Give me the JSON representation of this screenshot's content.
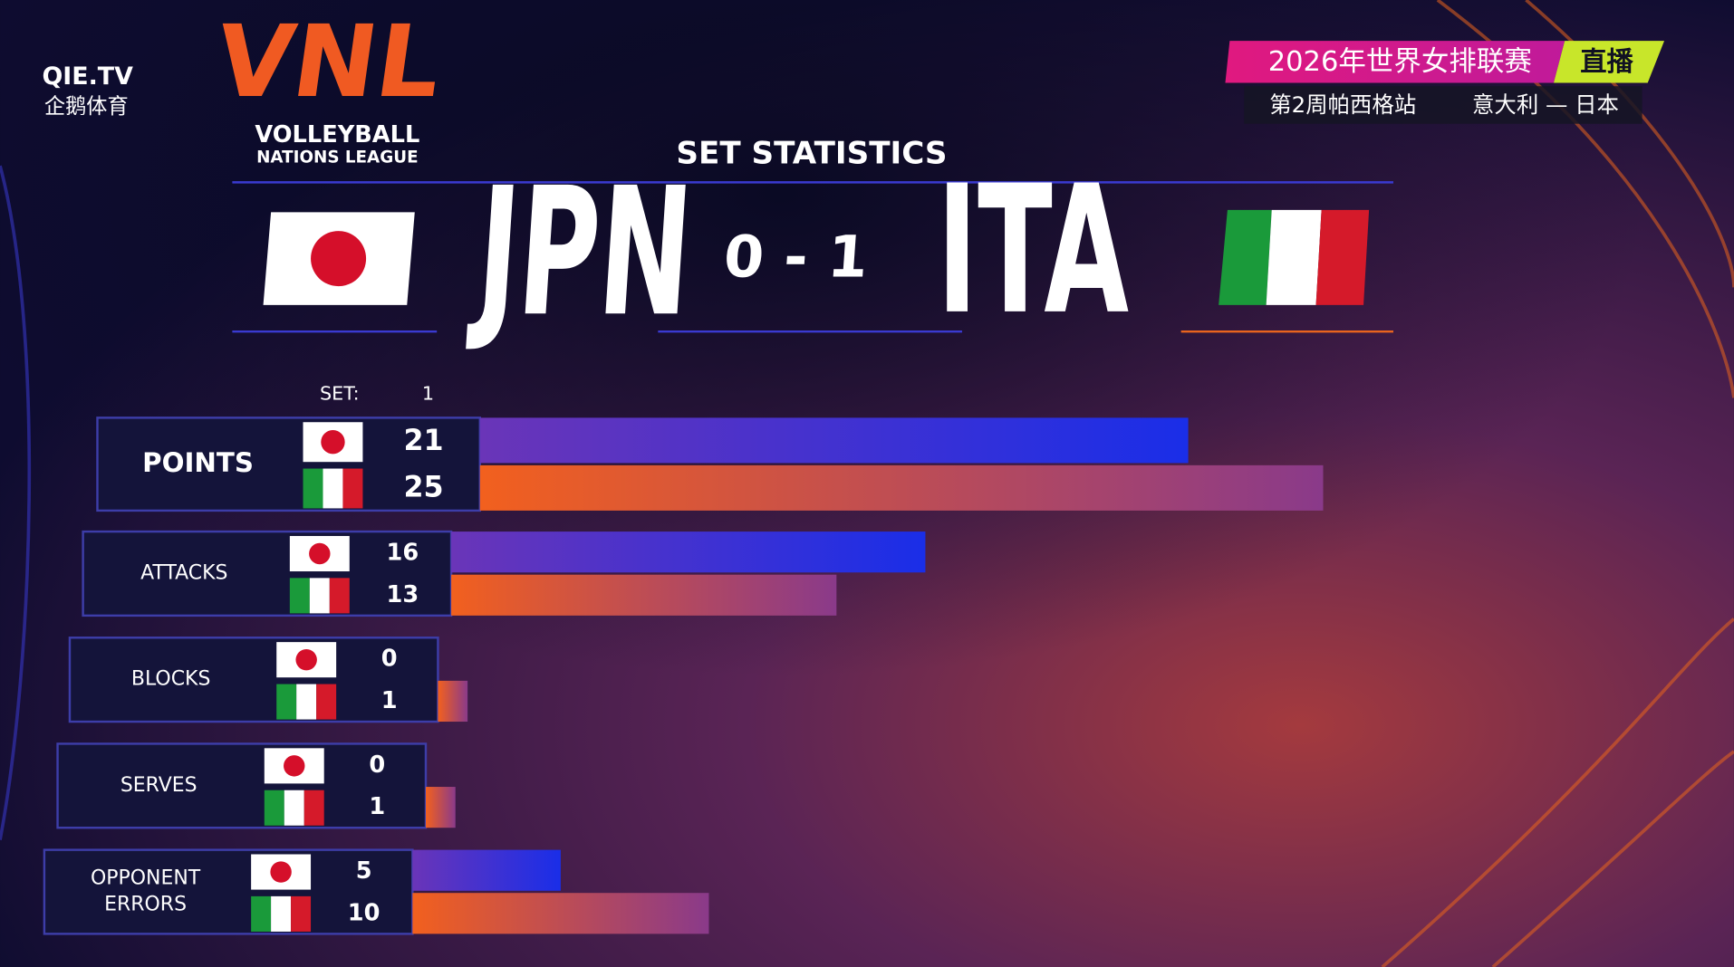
{
  "brand": {
    "name": "QIE.TV",
    "subname": "企鹅体育"
  },
  "league": {
    "logo": "VNL",
    "line1": "VOLLEYBALL",
    "line2": "NATIONS LEAGUE"
  },
  "broadcast": {
    "title": "2026年世界女排联赛",
    "badge": "直播",
    "stage": "第2周帕西格站",
    "match": "意大利 — 日本"
  },
  "header": {
    "title": "SET STATISTICS",
    "home": "JPN",
    "score": "0 - 1",
    "away": "ITA"
  },
  "set": {
    "label": "SET:",
    "number": "1"
  },
  "stats": [
    {
      "label": [
        "POINTS"
      ],
      "values": [
        21,
        25
      ]
    },
    {
      "label": [
        "ATTACKS"
      ],
      "values": [
        16,
        13
      ]
    },
    {
      "label": [
        "BLOCKS"
      ],
      "values": [
        0,
        1
      ]
    },
    {
      "label": [
        "SERVES"
      ],
      "values": [
        0,
        1
      ]
    },
    {
      "label": [
        "OPPONENT",
        "ERRORS"
      ],
      "values": [
        5,
        10
      ]
    }
  ]
}
